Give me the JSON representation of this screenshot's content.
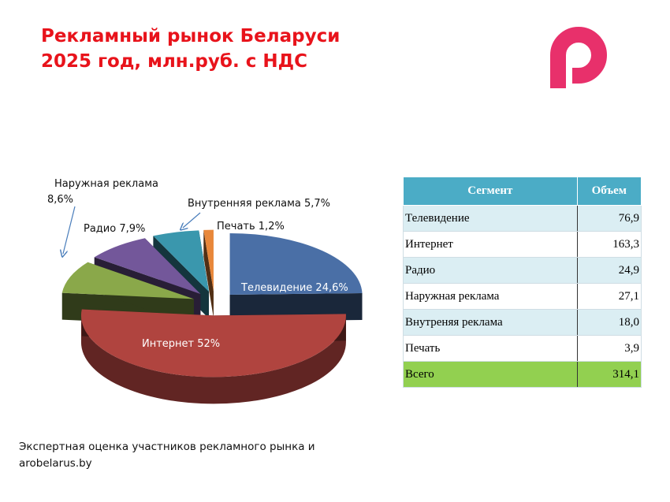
{
  "title": {
    "line1": "Рекламный рынок Беларуси",
    "line2": "2025 год, млн.руб. с НДС"
  },
  "logo": {
    "icon": "p-logo-icon",
    "color": "#e8306b"
  },
  "chart_data": {
    "type": "pie",
    "style": "3d-exploded",
    "slices": [
      {
        "label": "Телевидение",
        "percent": 24.6,
        "display": "Телевидение 24,6%",
        "color": "#4a6fa6"
      },
      {
        "label": "Интернет",
        "percent": 52,
        "display": "Интернет 52%",
        "color": "#b0443f"
      },
      {
        "label": "Наружная реклама",
        "percent": 8.6,
        "display_line1": "Наружная реклама",
        "display_line2": "8,6%",
        "color": "#8aa84a"
      },
      {
        "label": "Радио",
        "percent": 7.9,
        "display": "Радио 7,9%",
        "color": "#73579a"
      },
      {
        "label": "Внутренняя реклама",
        "percent": 5.7,
        "display": "Внутренняя реклама 5,7%",
        "color": "#3a97ad"
      },
      {
        "label": "Печать",
        "percent": 1.2,
        "display": "Печать 1,2%",
        "color": "#e8873a"
      }
    ]
  },
  "table": {
    "headers": [
      "Сегмент",
      "Объем"
    ],
    "rows": [
      {
        "segment": "Телевидение",
        "value": "76,9"
      },
      {
        "segment": "Интернет",
        "value": "163,3"
      },
      {
        "segment": "Радио",
        "value": "24,9"
      },
      {
        "segment": "Наружная реклама",
        "value": "27,1"
      },
      {
        "segment": "Внутреняя реклама",
        "value": "18,0"
      },
      {
        "segment": "Печать",
        "value": "3,9"
      }
    ],
    "total": {
      "segment": "Всего",
      "value": "314,1"
    }
  },
  "source": {
    "line1": "Экспертная оценка  участников рекламного  рынка  и",
    "line2": "arobelarus.by"
  }
}
